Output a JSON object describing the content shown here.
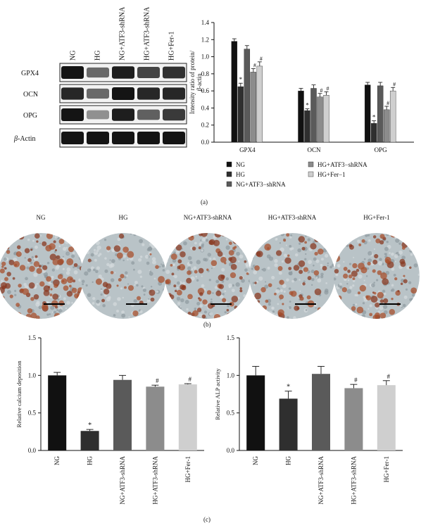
{
  "blot": {
    "lanes": [
      "NG",
      "HG",
      "NG+ATF3-shRNA",
      "HG+ATF3-shRNA",
      "HG+Fer-1"
    ],
    "rows": [
      "GPX4",
      "OCN",
      "OPG",
      "β-Actin"
    ],
    "band_intensity": [
      [
        1.0,
        0.55,
        0.95,
        0.75,
        0.85
      ],
      [
        0.9,
        0.55,
        1.0,
        0.9,
        0.9
      ],
      [
        1.0,
        0.35,
        0.95,
        0.6,
        0.8
      ],
      [
        1.0,
        1.0,
        1.0,
        1.0,
        1.0
      ]
    ]
  },
  "panel_labels": {
    "a": "(a)",
    "b": "(b)",
    "c": "(c)"
  },
  "micro": {
    "labels": [
      "NG",
      "HG",
      "NG+ATF3-shRNA",
      "HG+ATF3-shRNA",
      "HG+Fer-1"
    ],
    "stain_level": [
      0.85,
      0.2,
      0.7,
      0.45,
      0.6
    ]
  },
  "chart_data": [
    {
      "type": "bar",
      "ylabel": "Intensity ratio of protein/ β-actin",
      "ylim": [
        0,
        1.4
      ],
      "yticks": [
        "0.0",
        "0.2",
        "0.4",
        "0.6",
        "0.8",
        "1.0",
        "1.2",
        "1.4"
      ],
      "categories": [
        "GPX4",
        "OCN",
        "OPG"
      ],
      "series": [
        {
          "name": "NG",
          "values": [
            1.18,
            0.6,
            0.67
          ],
          "errors": [
            0.03,
            0.03,
            0.03
          ],
          "color": "#111111",
          "sig": [
            "",
            "",
            ""
          ]
        },
        {
          "name": "HG",
          "values": [
            0.65,
            0.37,
            0.22
          ],
          "errors": [
            0.04,
            0.02,
            0.03
          ],
          "color": "#2f2f2f",
          "sig": [
            "*",
            "*",
            "*"
          ]
        },
        {
          "name": "NG+ATF3−shRNA",
          "values": [
            1.09,
            0.63,
            0.66
          ],
          "errors": [
            0.04,
            0.04,
            0.04
          ],
          "color": "#5a5a5a",
          "sig": [
            "",
            "",
            ""
          ]
        },
        {
          "name": "HG+ATF3−shRNA",
          "values": [
            0.82,
            0.53,
            0.38
          ],
          "errors": [
            0.04,
            0.04,
            0.04
          ],
          "color": "#8c8c8c",
          "sig": [
            "#",
            "#",
            "#"
          ]
        },
        {
          "name": "HG+Fer−1",
          "values": [
            0.89,
            0.55,
            0.6
          ],
          "errors": [
            0.05,
            0.04,
            0.04
          ],
          "color": "#cfcfcf",
          "sig": [
            "#",
            "#",
            "#"
          ]
        }
      ],
      "legend": "bottom"
    },
    {
      "type": "bar",
      "ylabel": "Relative calcium deposition",
      "ylim": [
        0,
        1.5
      ],
      "yticks": [
        "0.0",
        "0.5",
        "1.0",
        "1.5"
      ],
      "categories": [
        "NG",
        "HG",
        "NG+ATF3-shRNA",
        "HG+ATF3-shRNA",
        "HG+Fer-1"
      ],
      "values": [
        1.0,
        0.26,
        0.94,
        0.85,
        0.88
      ],
      "errors": [
        0.04,
        0.02,
        0.06,
        0.02,
        0.01
      ],
      "sig": [
        "",
        "*",
        "",
        "#",
        "#"
      ],
      "colors": [
        "#111111",
        "#2f2f2f",
        "#5a5a5a",
        "#8c8c8c",
        "#cfcfcf"
      ]
    },
    {
      "type": "bar",
      "ylabel": "Relative ALP activity",
      "ylim": [
        0,
        1.5
      ],
      "yticks": [
        "0.0",
        "0.5",
        "1.0",
        "1.5"
      ],
      "categories": [
        "NG",
        "HG",
        "NG+ATF3-shRNA",
        "HG+ATF3-shRNA",
        "HG+Fer-1"
      ],
      "values": [
        1.0,
        0.69,
        1.02,
        0.83,
        0.87
      ],
      "errors": [
        0.12,
        0.1,
        0.1,
        0.05,
        0.06
      ],
      "sig": [
        "",
        "*",
        "",
        "#",
        "#"
      ],
      "colors": [
        "#111111",
        "#2f2f2f",
        "#5a5a5a",
        "#8c8c8c",
        "#cfcfcf"
      ]
    }
  ]
}
